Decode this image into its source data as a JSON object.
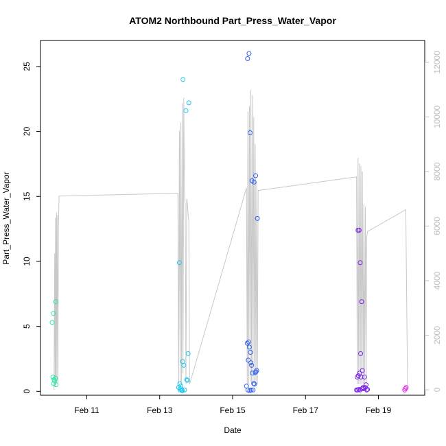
{
  "chart_data": {
    "type": "scatter",
    "title": "ATOM2 Northbound Part_Press_Water_Vapor",
    "xlabel": "Date",
    "ylabel": "Part_Press_Water_Vapor",
    "x_ticks": [
      "Feb 11",
      "Feb 13",
      "Feb 15",
      "Feb 17",
      "Feb 19"
    ],
    "x_tick_values": [
      11,
      13,
      15,
      17,
      19
    ],
    "xlim": [
      9.73,
      20.27
    ],
    "ylim": [
      -0.3,
      27
    ],
    "y_ticks": [
      0,
      5,
      10,
      15,
      20,
      25
    ],
    "right_axis": {
      "ticks": [
        0,
        2000,
        4000,
        6000,
        8000,
        10000,
        12000
      ],
      "ylim": [
        -200,
        12800
      ],
      "color": "#bdbdbd",
      "line_color": "#c8c8c8",
      "line": [
        [
          10.1,
          0
        ],
        [
          10.12,
          5000
        ],
        [
          10.13,
          100
        ],
        [
          10.14,
          6300
        ],
        [
          10.15,
          200
        ],
        [
          10.17,
          6500
        ],
        [
          10.18,
          300
        ],
        [
          10.2,
          6400
        ],
        [
          10.21,
          200
        ],
        [
          10.22,
          6000
        ],
        [
          10.24,
          7100
        ],
        [
          13.5,
          7200
        ],
        [
          13.52,
          200
        ],
        [
          13.54,
          9500
        ],
        [
          13.56,
          200
        ],
        [
          13.58,
          9800
        ],
        [
          13.6,
          300
        ],
        [
          13.62,
          10500
        ],
        [
          13.64,
          600
        ],
        [
          13.66,
          10700
        ],
        [
          13.68,
          7000
        ],
        [
          13.7,
          6800
        ],
        [
          13.72,
          200
        ],
        [
          13.74,
          7000
        ],
        [
          13.76,
          6800
        ],
        [
          13.78,
          6400
        ],
        [
          13.8,
          6200
        ],
        [
          13.82,
          200
        ],
        [
          15.38,
          7400
        ],
        [
          15.4,
          200
        ],
        [
          15.42,
          10200
        ],
        [
          15.44,
          200
        ],
        [
          15.46,
          10400
        ],
        [
          15.48,
          300
        ],
        [
          15.5,
          11000
        ],
        [
          15.52,
          200
        ],
        [
          15.54,
          10800
        ],
        [
          15.56,
          300
        ],
        [
          15.58,
          10000
        ],
        [
          15.6,
          200
        ],
        [
          15.62,
          9000
        ],
        [
          15.64,
          200
        ],
        [
          15.66,
          7600
        ],
        [
          15.68,
          200
        ],
        [
          15.7,
          7300
        ],
        [
          18.4,
          7800
        ],
        [
          18.42,
          200
        ],
        [
          18.44,
          8500
        ],
        [
          18.46,
          200
        ],
        [
          18.48,
          8300
        ],
        [
          18.5,
          200
        ],
        [
          18.52,
          8200
        ],
        [
          18.54,
          200
        ],
        [
          18.56,
          8000
        ],
        [
          18.58,
          200
        ],
        [
          18.6,
          6800
        ],
        [
          18.62,
          200
        ],
        [
          18.64,
          6700
        ],
        [
          18.66,
          200
        ],
        [
          18.68,
          5600
        ],
        [
          18.7,
          5800
        ],
        [
          19.75,
          6600
        ],
        [
          19.8,
          0
        ]
      ]
    },
    "grid": false,
    "legend": "none",
    "series": [
      {
        "color": "#2ee6a5",
        "points": [
          [
            10.05,
            5.3
          ],
          [
            10.07,
            1.1
          ],
          [
            10.08,
            6.0
          ],
          [
            10.1,
            0.9
          ],
          [
            10.12,
            0.8
          ],
          [
            10.14,
            1.0
          ],
          [
            10.15,
            6.9
          ],
          [
            10.16,
            0.5
          ],
          [
            10.09,
            0.6
          ]
        ]
      },
      {
        "color": "#1ec8ee",
        "points": [
          [
            13.52,
            0.3
          ],
          [
            13.54,
            9.9
          ],
          [
            13.55,
            0.6
          ],
          [
            13.56,
            0.1
          ],
          [
            13.58,
            0.4
          ],
          [
            13.6,
            0.1
          ],
          [
            13.62,
            0.05
          ],
          [
            13.63,
            2.3
          ],
          [
            13.64,
            24.0
          ],
          [
            13.66,
            2.0
          ],
          [
            13.68,
            0.1
          ],
          [
            13.72,
            21.6
          ],
          [
            13.74,
            0.9
          ],
          [
            13.76,
            0.85
          ],
          [
            13.78,
            2.9
          ],
          [
            13.8,
            22.2
          ],
          [
            13.57,
            0.2
          ],
          [
            13.61,
            0.1
          ]
        ]
      },
      {
        "color": "#2f5ff0",
        "points": [
          [
            15.38,
            0.4
          ],
          [
            15.4,
            3.7
          ],
          [
            15.41,
            25.6
          ],
          [
            15.42,
            0.1
          ],
          [
            15.43,
            2.4
          ],
          [
            15.44,
            3.8
          ],
          [
            15.45,
            26.0
          ],
          [
            15.46,
            3.4
          ],
          [
            15.48,
            19.9
          ],
          [
            15.49,
            3.0
          ],
          [
            15.5,
            2.2
          ],
          [
            15.51,
            0.1
          ],
          [
            15.52,
            2.0
          ],
          [
            15.53,
            16.2
          ],
          [
            15.54,
            1.4
          ],
          [
            15.56,
            0.1
          ],
          [
            15.58,
            0.6
          ],
          [
            15.59,
            16.1
          ],
          [
            15.6,
            0.55
          ],
          [
            15.62,
            1.45
          ],
          [
            15.63,
            16.6
          ],
          [
            15.64,
            1.5
          ],
          [
            15.66,
            1.6
          ],
          [
            15.68,
            13.3
          ],
          [
            15.47,
            0.05
          ]
        ]
      },
      {
        "color": "#7a22e6",
        "points": [
          [
            18.4,
            0.1
          ],
          [
            18.42,
            1.1
          ],
          [
            18.44,
            12.4
          ],
          [
            18.45,
            1.2
          ],
          [
            18.46,
            0.15
          ],
          [
            18.47,
            12.4
          ],
          [
            18.48,
            1.4
          ],
          [
            18.5,
            9.9
          ],
          [
            18.51,
            2.9
          ],
          [
            18.52,
            1.1
          ],
          [
            18.54,
            6.9
          ],
          [
            18.55,
            0.2
          ],
          [
            18.56,
            1.6
          ],
          [
            18.58,
            0.3
          ],
          [
            18.6,
            0.2
          ],
          [
            18.62,
            1.1
          ],
          [
            18.64,
            0.3
          ],
          [
            18.66,
            0.5
          ],
          [
            18.68,
            0.1
          ],
          [
            18.7,
            0.15
          ],
          [
            18.43,
            0.1
          ],
          [
            18.49,
            0.1
          ]
        ]
      },
      {
        "color": "#e22ee6",
        "points": [
          [
            19.72,
            0.1
          ],
          [
            19.74,
            0.2
          ],
          [
            19.76,
            0.3
          ]
        ]
      }
    ]
  }
}
